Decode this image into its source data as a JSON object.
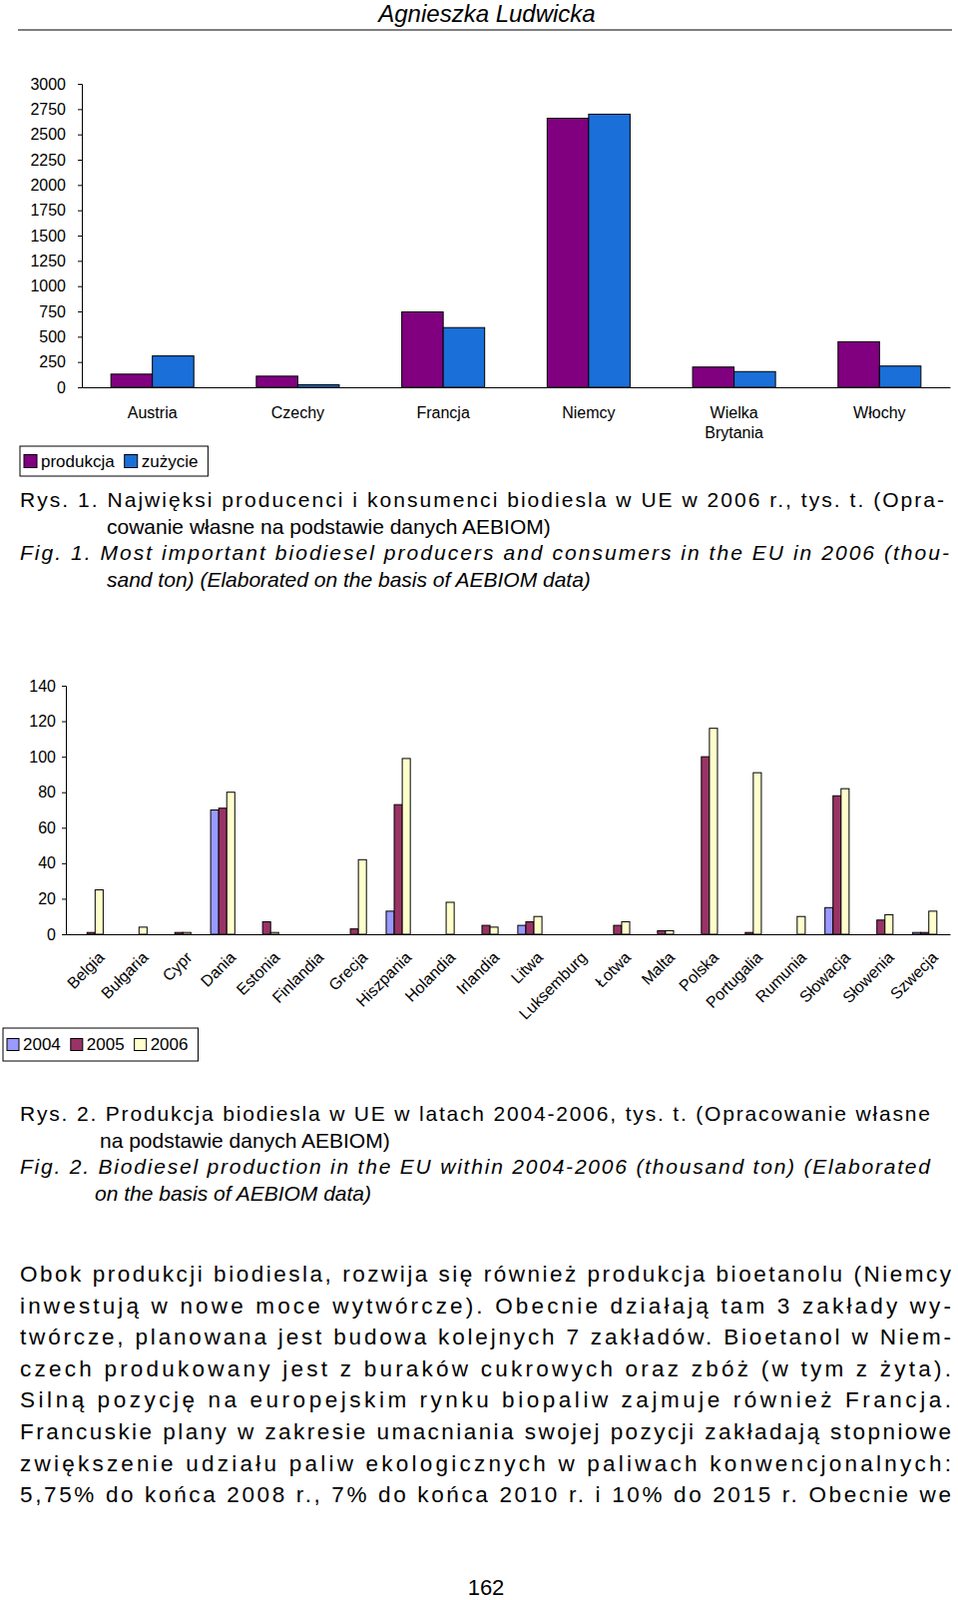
{
  "header": {
    "author": "Agnieszka Ludwicka"
  },
  "chart_data": [
    {
      "type": "bar",
      "categories": [
        "Austria",
        "Czechy",
        "Francja",
        "Niemcy",
        "Wielka Brytania",
        "Włochy"
      ],
      "series": [
        {
          "name": "produkcja",
          "color": "#800080",
          "values": [
            130,
            110,
            745,
            2660,
            200,
            450
          ]
        },
        {
          "name": "zużycie",
          "color": "#1a6fd8",
          "values": [
            310,
            25,
            590,
            2700,
            155,
            210
          ]
        }
      ],
      "ylim": [
        0,
        3000
      ],
      "yticks": [
        0,
        250,
        500,
        750,
        1000,
        1250,
        1500,
        1750,
        2000,
        2250,
        2500,
        2750,
        3000
      ],
      "legend": "bottom-left"
    },
    {
      "type": "bar",
      "categories": [
        "Belgia",
        "Bułgaria",
        "Cypr",
        "Dania",
        "Estonia",
        "Finlandia",
        "Grecja",
        "Hiszpania",
        "Holandia",
        "Irlandia",
        "Litwa",
        "Luksemburg",
        "Łotwa",
        "Malta",
        "Polska",
        "Portugalia",
        "Rumunia",
        "Słowacja",
        "Słowenia",
        "Szwecja"
      ],
      "series": [
        {
          "name": "2004",
          "color": "#9999ff",
          "values": [
            0,
            0,
            0,
            70,
            0,
            0,
            0,
            13,
            0,
            0,
            5,
            0,
            0,
            0,
            0,
            0,
            0,
            15,
            0,
            1
          ]
        },
        {
          "name": "2005",
          "color": "#993366",
          "values": [
            1,
            0,
            1,
            71,
            7,
            0,
            3,
            73,
            0,
            5,
            7,
            0,
            5,
            2,
            100,
            1,
            0,
            78,
            8,
            1
          ]
        },
        {
          "name": "2006",
          "color": "#ffffcc",
          "values": [
            25,
            4,
            1,
            80,
            1,
            0,
            42,
            99,
            18,
            4,
            10,
            0,
            7,
            2,
            116,
            91,
            10,
            82,
            11,
            13
          ]
        }
      ],
      "ylim": [
        0,
        140
      ],
      "yticks": [
        0,
        20,
        40,
        60,
        80,
        100,
        120,
        140
      ],
      "legend": "bottom-left"
    }
  ],
  "captions": [
    {
      "pl": [
        "Rys. 1. Najwięksi producenci i konsumenci biodiesla w UE w 2006 r., tys. t. (Opra-",
        "cowanie własne na podstawie danych AEBIOM)"
      ],
      "en": [
        "Fig. 1. Most important biodiesel producers and consumers in the EU in 2006 (thou-",
        "sand ton) (Elaborated on the basis of AEBIOM data)"
      ]
    },
    {
      "pl": [
        "Rys. 2. Produkcja biodiesla w UE w latach 2004-2006, tys. t. (Opracowanie własne",
        "na podstawie danych AEBIOM)"
      ],
      "en": [
        "Fig. 2. Biodiesel production in the EU within 2004-2006 (thousand ton) (Elaborated",
        "on the basis of AEBIOM data)"
      ]
    }
  ],
  "body": [
    "Obok produkcji biodiesla, rozwija się również produkcja bioetanolu (Niemcy",
    "inwestują w nowe moce wytwórcze). Obecnie działają tam 3 zakłady wy-",
    "twórcze, planowana jest budowa kolejnych 7 zakładów. Bioetanol w Niem-",
    "czech produkowany jest z buraków cukrowych oraz zbóż (w tym z żyta).",
    "Silną pozycję na europejskim rynku biopaliw zajmuje również Francja.",
    "Francuskie plany w zakresie umacniania swojej pozycji zakładają stopniowe",
    "zwiększenie udziału paliw ekologicznych w paliwach konwencjonalnych:",
    "5,75% do końca 2008 r., 7% do końca 2010 r. i 10% do 2015 r. Obecnie we"
  ],
  "page_number": 162
}
